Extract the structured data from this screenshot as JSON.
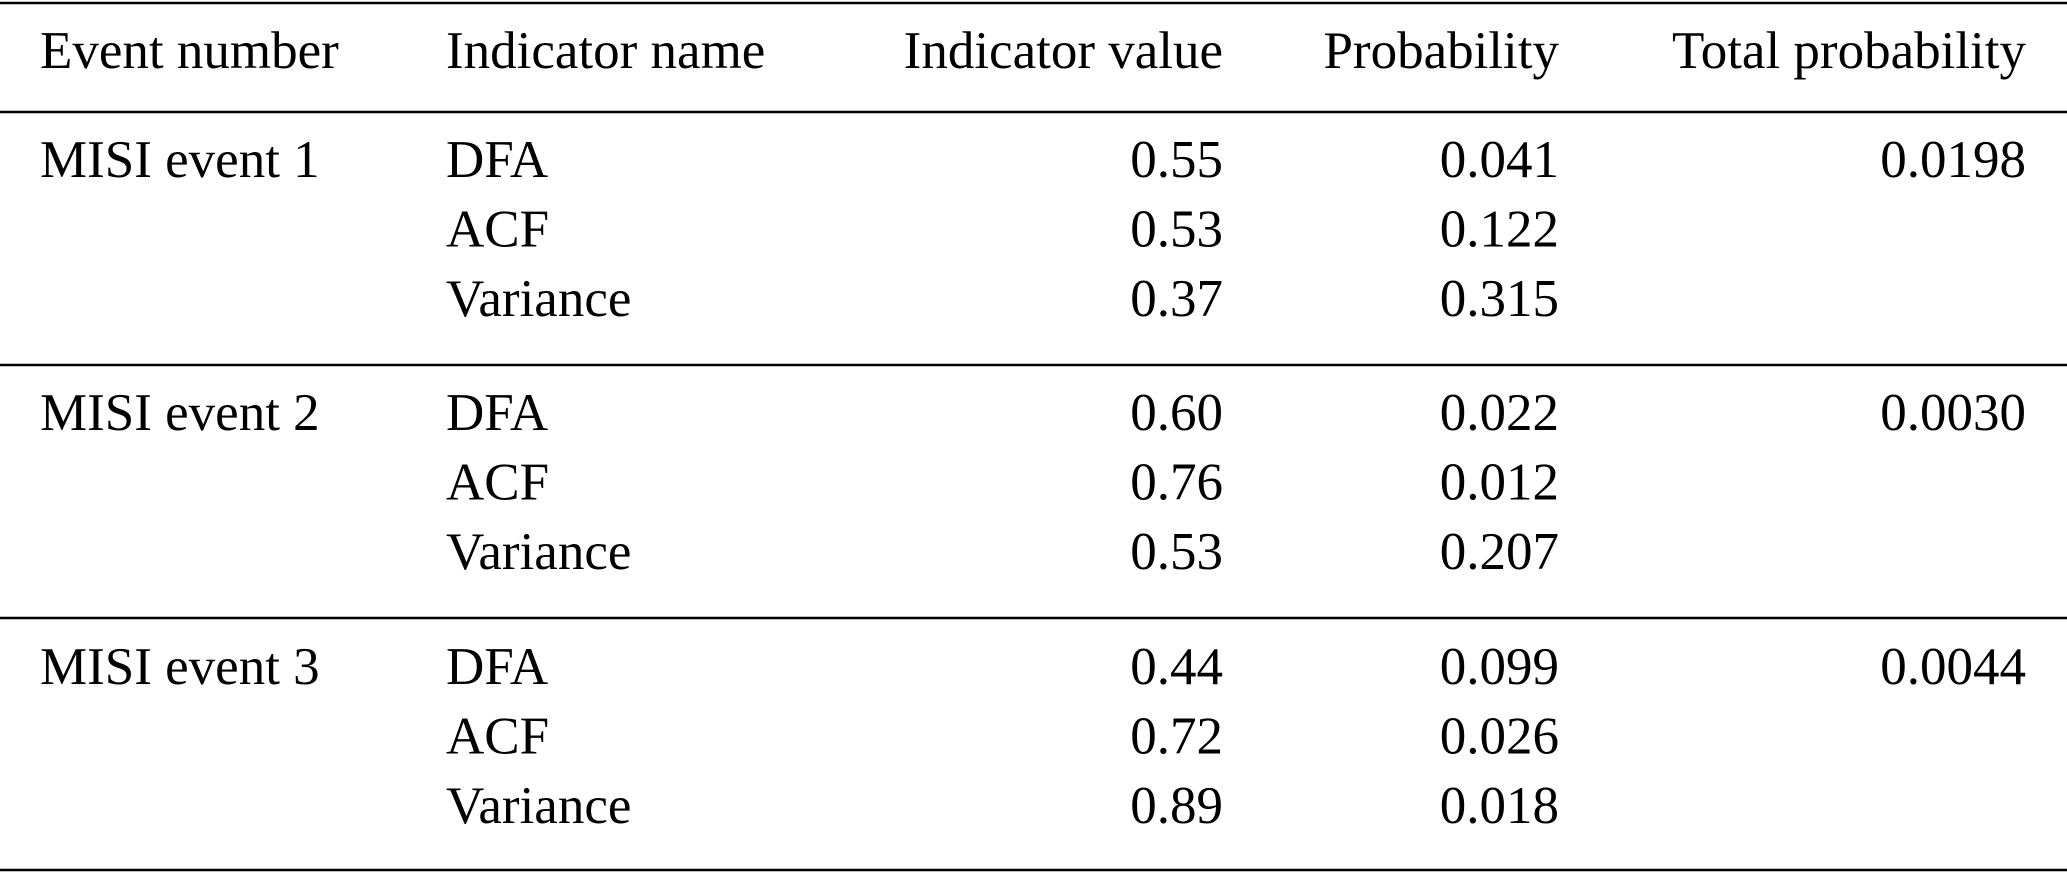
{
  "table": {
    "columns": [
      "Event number",
      "Indicator name",
      "Indicator value",
      "Probability",
      "Total probability"
    ],
    "groups": [
      {
        "event": "MISI event 1",
        "total": "0.0198",
        "rows": [
          [
            "DFA",
            "0.55",
            "0.041"
          ],
          [
            "ACF",
            "0.53",
            "0.122"
          ],
          [
            "Variance",
            "0.37",
            "0.315"
          ]
        ]
      },
      {
        "event": "MISI event 2",
        "total": "0.0030",
        "rows": [
          [
            "DFA",
            "0.60",
            "0.022"
          ],
          [
            "ACF",
            "0.76",
            "0.012"
          ],
          [
            "Variance",
            "0.53",
            "0.207"
          ]
        ]
      },
      {
        "event": "MISI event 3",
        "total": "0.0044",
        "rows": [
          [
            "DFA",
            "0.44",
            "0.099"
          ],
          [
            "ACF",
            "0.72",
            "0.026"
          ],
          [
            "Variance",
            "0.89",
            "0.018"
          ]
        ]
      }
    ]
  }
}
